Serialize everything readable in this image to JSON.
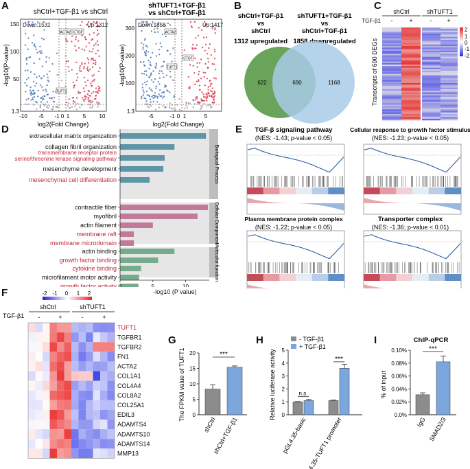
{
  "panels": {
    "A": {
      "label": "A",
      "left": {
        "title": "shCtrl+TGF-β1 vs shCtrl",
        "down": "Down:1532",
        "up": "Up:1312",
        "xlabel": "log2(Fold Change)",
        "ylabel": "-log10(P-value)",
        "xticks": [
          "-10",
          "-5",
          "-1",
          "0",
          "1",
          "5",
          "10"
        ],
        "yticks": [
          "1.3",
          "50",
          "100",
          "150"
        ],
        "genes": [
          "ACTA2",
          "CTGF",
          "TUFT1"
        ]
      },
      "right": {
        "title1": "shTUFT1+TGF-β1",
        "title2": "vs shCtrl+TGF-β1",
        "down": "Down:1858",
        "up": "Up:1417",
        "xlabel": "log2(Fold Change)",
        "ylabel": "-log10(P-value)",
        "xticks": [
          "-5",
          "-1",
          "0",
          "1",
          "5"
        ],
        "yticks": [
          "1.3",
          "100",
          "200",
          "300"
        ],
        "genes": [
          "ACTA2",
          "CTGF",
          "TUFT1"
        ]
      }
    },
    "B": {
      "label": "B",
      "left_title": [
        "shCtrl+TGF-β1",
        "vs",
        "shCtrl"
      ],
      "left_sub": "1312 upregulated",
      "right_title": [
        "shTUFT1+TGF-β1",
        "vs",
        "shCtrl+TGF-β1"
      ],
      "right_sub": "1858 downregulated",
      "left_only": "622",
      "overlap": "690",
      "right_only": "1168",
      "left_color": "#6aa35a",
      "right_color": "#a8cbe8"
    },
    "C": {
      "label": "C",
      "groups": [
        "shCtrl",
        "shTUFT1"
      ],
      "treatment_label": "TGF-β1",
      "signs": [
        "-",
        "+",
        "-",
        "+"
      ],
      "ylabel": "Transcripts of 690 DEGs",
      "scale": [
        "2",
        "1",
        "0",
        "-1",
        "-2"
      ]
    },
    "D": {
      "label": "D",
      "xlabel": "-log10 (P value)",
      "xticks": [
        "0",
        "5",
        "10"
      ],
      "categories": [
        "Biological Process",
        "Cellular Component",
        "Molecular function"
      ],
      "highlight_color": "#c0293b"
    },
    "E": {
      "label": "E",
      "plots": [
        {
          "title": "TGF-β signaling pathway",
          "stats": "(NES: -1.43; p-value < 0.05)"
        },
        {
          "title": "Cellular response to growth factor stimulus",
          "stats": "(NES: -1.23; p-value < 0.05)"
        },
        {
          "title": "Plasma membrane protein complex",
          "stats": "(NES: -1.22; p-value < 0.05)"
        },
        {
          "title": "Transporter complex",
          "stats": "(NES: -1.36; p-value < 0.01)"
        }
      ]
    },
    "F": {
      "label": "F",
      "groups": [
        "shCtrl",
        "shTUFT1"
      ],
      "treatment_label": "TGF-β1",
      "signs": [
        "-",
        "+",
        "-",
        "+"
      ],
      "scale": [
        "-2",
        "-1",
        "0",
        "1",
        "2"
      ],
      "genes": [
        "TUFT1",
        "TGFBR1",
        "TGFBR2",
        "FN1",
        "ACTA2",
        "COL1A1",
        "COL4A4",
        "COL8A2",
        "COL25A1",
        "EDIL3",
        "ADAMTS4",
        "ADAMTS10",
        "ADAMTS14",
        "MMP13"
      ],
      "highlight_gene": "TUFT1"
    },
    "G": {
      "label": "G",
      "ylabel": "The FPKM value of TUFT1",
      "sig": "***",
      "yticks": [
        "0",
        "5",
        "10",
        "15",
        "20"
      ]
    },
    "H": {
      "label": "H",
      "ylabel": "Relative luciferase activity",
      "legend": [
        "- TGF-β1",
        "+ TGF-β1"
      ],
      "sig": [
        "n.s.",
        "***"
      ],
      "yticks": [
        "0",
        "1",
        "2",
        "3",
        "4",
        "5"
      ]
    },
    "I": {
      "label": "I",
      "title": "ChIP-qPCR",
      "ylabel": "% of input",
      "sig": "***",
      "yticks": [
        "0.0%",
        "0.02%",
        "0.04%",
        "0.06%",
        "0.08%",
        "0.10%"
      ]
    }
  },
  "chart_data": [
    {
      "type": "bar",
      "panel": "D",
      "title": "",
      "xlabel": "-log10 (P value)",
      "xlim": [
        0,
        14
      ],
      "groups": [
        {
          "name": "Biological Process",
          "color": "#5e95a8",
          "terms": [
            {
              "term": "extracellular matrix organization",
              "value": 13.1,
              "highlight": false
            },
            {
              "term": "collagen fibril organization",
              "value": 8.3,
              "highlight": false
            },
            {
              "term": "transmembrane receptor protein serine/threonine kinase signaling pathway",
              "lines": [
                "transmembrane receptor protein",
                "serine/threonine kinase signaling pathway"
              ],
              "value": 6.8,
              "highlight": true
            },
            {
              "term": "mesenchyme development",
              "value": 6.6,
              "highlight": false
            },
            {
              "term": "mesenchymal cell differentiation",
              "value": 4.5,
              "highlight": true
            }
          ]
        },
        {
          "name": "Cellular Component",
          "color": "#c27a9a",
          "terms": [
            {
              "term": "contractile fiber",
              "value": 13.4,
              "highlight": false
            },
            {
              "term": "myofibril",
              "value": 11.8,
              "highlight": false
            },
            {
              "term": "actin filament",
              "value": 5.0,
              "highlight": false
            },
            {
              "term": "membrane raft",
              "value": 2.1,
              "highlight": true
            },
            {
              "term": "membrane microdomain",
              "value": 2.1,
              "highlight": true
            }
          ]
        },
        {
          "name": "Molecular function",
          "color": "#76ab8b",
          "terms": [
            {
              "term": "actin binding",
              "value": 8.3,
              "highlight": false
            },
            {
              "term": "growth factor binding",
              "value": 5.8,
              "highlight": true
            },
            {
              "term": "cytokine binding",
              "value": 3.2,
              "highlight": true
            },
            {
              "term": "microfilament motor activity",
              "value": 2.9,
              "highlight": false
            },
            {
              "term": "growth factor activity",
              "value": 2.8,
              "highlight": true
            }
          ]
        }
      ]
    },
    {
      "type": "bar",
      "panel": "G",
      "categories": [
        "shCtrl",
        "shCtrl+TGF-β1"
      ],
      "values": [
        8.3,
        15.4
      ],
      "errors": [
        1.4,
        0.4
      ],
      "colors": [
        "#8c8c8c",
        "#7ba7dc"
      ],
      "ylabel": "The FPKM value of TUFT1",
      "ylim": [
        0,
        20
      ]
    },
    {
      "type": "bar",
      "panel": "H",
      "categories": [
        "pGL4.35-basic",
        "pGL4.35-TUFT1 promoter"
      ],
      "series": [
        {
          "name": "- TGF-β1",
          "color": "#8c8c8c",
          "values": [
            1.0,
            1.1
          ],
          "errors": [
            0.02,
            0.05
          ]
        },
        {
          "name": "+ TGF-β1",
          "color": "#7ba7dc",
          "values": [
            1.1,
            3.6
          ],
          "errors": [
            0.08,
            0.3
          ]
        }
      ],
      "ylabel": "Relative luciferase activity",
      "ylim": [
        0,
        5
      ]
    },
    {
      "type": "bar",
      "panel": "I",
      "title": "ChIP-qPCR",
      "categories": [
        "IgG",
        "SMAD2/3"
      ],
      "values": [
        0.031,
        0.082
      ],
      "errors": [
        0.003,
        0.009
      ],
      "colors": [
        "#8c8c8c",
        "#7ba7dc"
      ],
      "ylabel": "% of input",
      "ylim": [
        0,
        0.1
      ]
    },
    {
      "type": "pie",
      "panel": "B",
      "subtype": "venn",
      "sets": [
        {
          "name": "shCtrl+TGF-β1 vs shCtrl",
          "size": 1312
        },
        {
          "name": "shTUFT1+TGF-β1 vs shCtrl+TGF-β1",
          "size": 1858
        }
      ],
      "regions": {
        "left_only": 622,
        "overlap": 690,
        "right_only": 1168
      }
    }
  ]
}
